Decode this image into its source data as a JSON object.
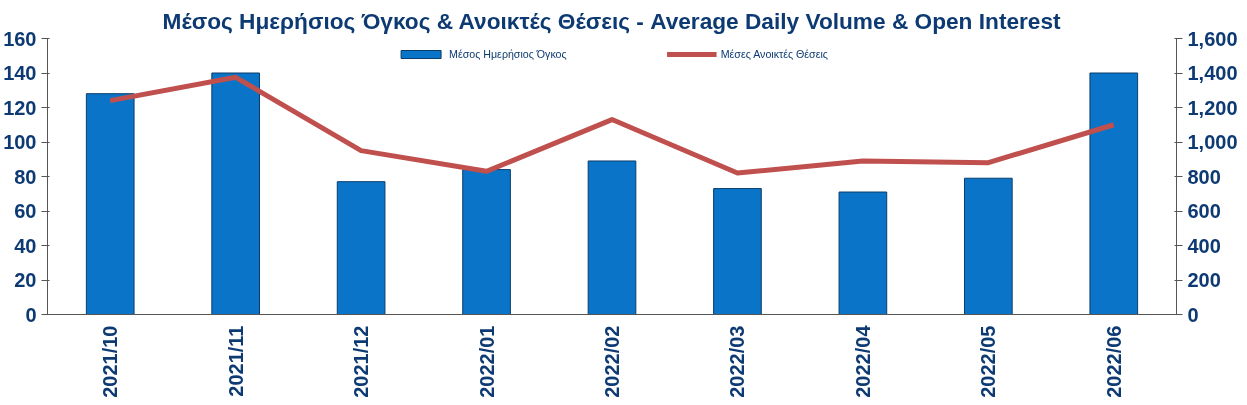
{
  "chart_data": {
    "type": "bar",
    "title": "Μέσος Ημερήσιος Όγκος & Ανοικτές Θέσεις - Average Daily Volume & Open Interest",
    "categories": [
      "2021/10",
      "2021/11",
      "2021/12",
      "2022/01",
      "2022/02",
      "2022/03",
      "2022/04",
      "2022/05",
      "2022/06"
    ],
    "series": [
      {
        "name": "Μέσος Ημερήσιος Όγκος",
        "color": "#0a74c8",
        "values": [
          128,
          140,
          77,
          84,
          89,
          73,
          71,
          79,
          140
        ]
      },
      {
        "name": "Μέσες Ανοικτές Θέσεις",
        "type": "line",
        "axis": "y2",
        "color": "#c0504d",
        "values": [
          1240,
          1375,
          950,
          830,
          1130,
          820,
          890,
          880,
          1100
        ]
      }
    ],
    "ylim": [
      0,
      160
    ],
    "yticks": [
      0,
      20,
      40,
      60,
      80,
      100,
      120,
      140,
      160
    ],
    "y2lim": [
      0,
      1600
    ],
    "y2ticks": [
      {
        "value": 0,
        "label": "0"
      },
      {
        "value": 200,
        "label": "200"
      },
      {
        "value": 400,
        "label": "400"
      },
      {
        "value": 600,
        "label": "600"
      },
      {
        "value": 800,
        "label": "800"
      },
      {
        "value": 1000,
        "label": "1,000"
      },
      {
        "value": 1200,
        "label": "1,200"
      },
      {
        "value": 1400,
        "label": "1,400"
      },
      {
        "value": 1600,
        "label": "1,600"
      }
    ],
    "grid": false,
    "legend": "top"
  }
}
